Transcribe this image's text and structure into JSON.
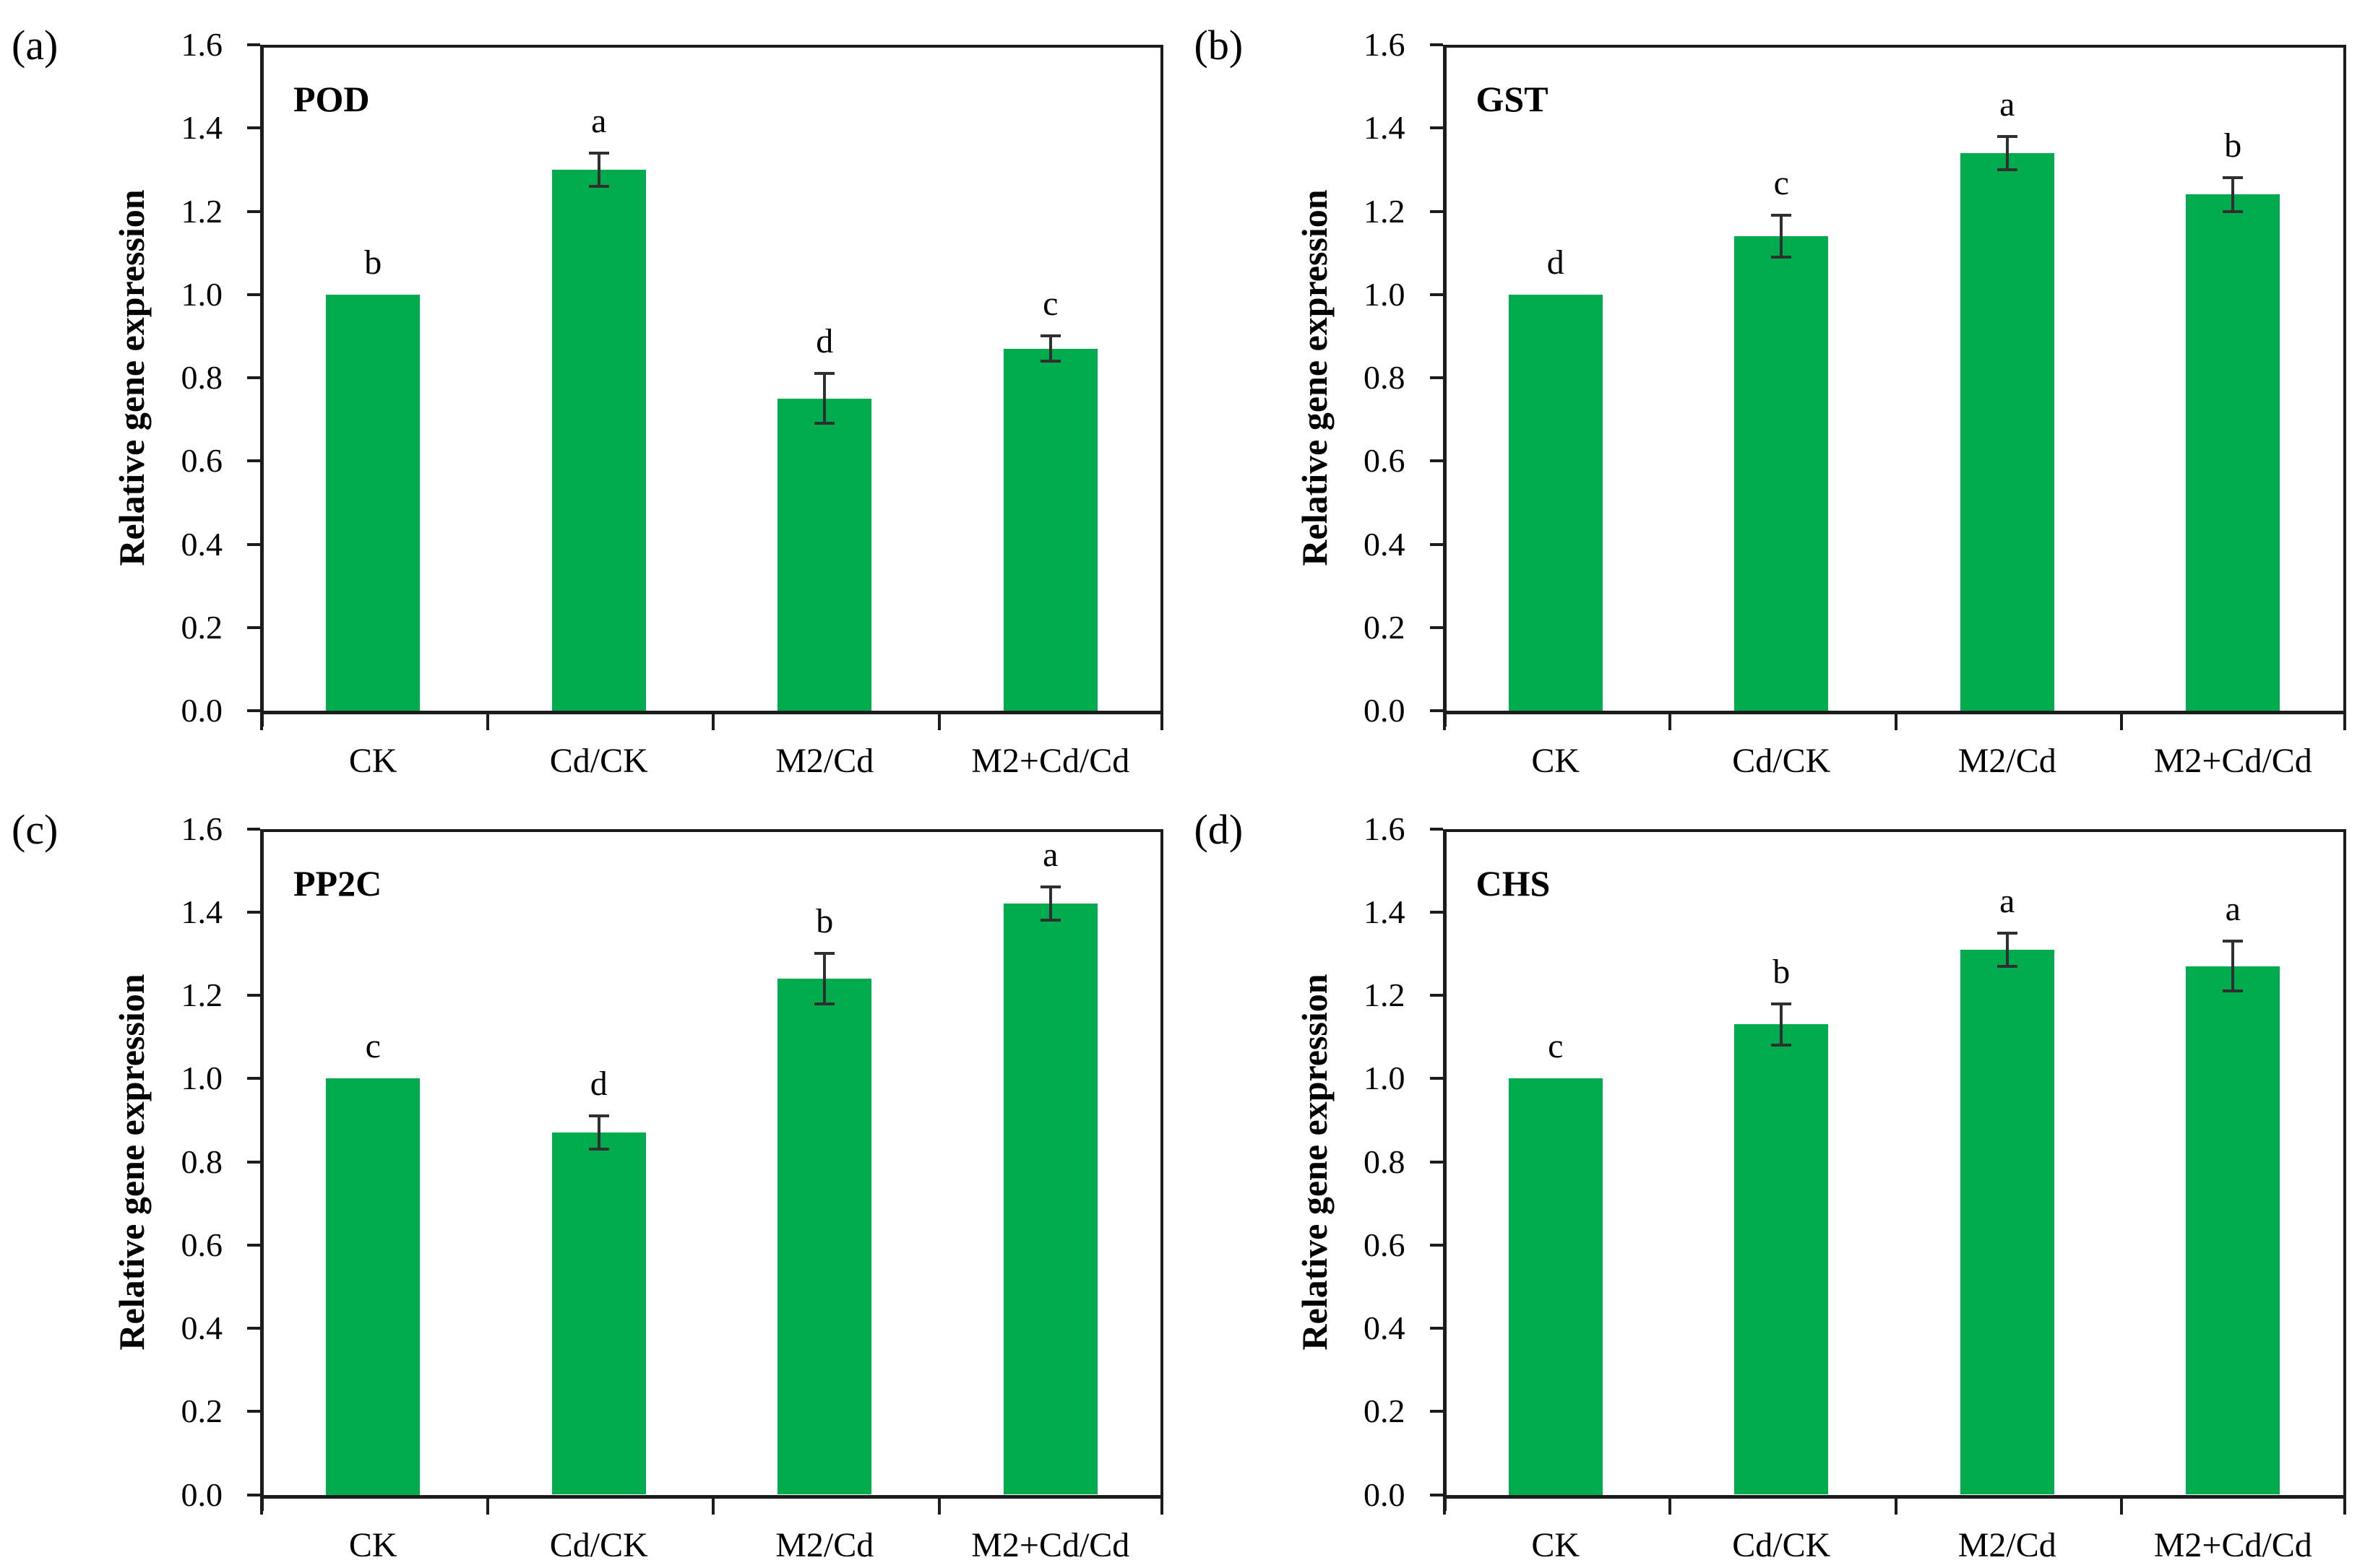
{
  "figure": {
    "bar_color": "#00AC4E",
    "axis_color": "#1c1c1c",
    "error_bar_color": "#2f2f2f",
    "background": "#ffffff",
    "ylabel": "Relative gene expression",
    "categories": [
      "CK",
      "Cd/CK",
      "M2/Cd",
      "M2+Cd/Cd"
    ],
    "yticks": [
      "0.0",
      "0.2",
      "0.4",
      "0.6",
      "0.8",
      "1.0",
      "1.2",
      "1.4",
      "1.6"
    ]
  },
  "chart_data": [
    {
      "type": "bar",
      "panel_label": "(a)",
      "title": "POD",
      "xlabel": "",
      "ylabel": "Relative gene expression",
      "categories": [
        "CK",
        "Cd/CK",
        "M2/Cd",
        "M2+Cd/Cd"
      ],
      "values": [
        1.0,
        1.3,
        0.75,
        0.87
      ],
      "errors": [
        0,
        0.04,
        0.06,
        0.03
      ],
      "sig_letters": [
        "b",
        "a",
        "d",
        "c"
      ],
      "yticks": [
        "0.0",
        "0.2",
        "0.4",
        "0.6",
        "0.8",
        "1.0",
        "1.2",
        "1.4",
        "1.6"
      ],
      "ylim": [
        0,
        1.6
      ],
      "grid": false,
      "legend": false
    },
    {
      "type": "bar",
      "panel_label": "(b)",
      "title": "GST",
      "xlabel": "",
      "ylabel": "Relative gene expression",
      "categories": [
        "CK",
        "Cd/CK",
        "M2/Cd",
        "M2+Cd/Cd"
      ],
      "values": [
        1.0,
        1.14,
        1.34,
        1.24
      ],
      "errors": [
        0,
        0.05,
        0.04,
        0.04
      ],
      "sig_letters": [
        "d",
        "c",
        "a",
        "b"
      ],
      "yticks": [
        "0.0",
        "0.2",
        "0.4",
        "0.6",
        "0.8",
        "1.0",
        "1.2",
        "1.4",
        "1.6"
      ],
      "ylim": [
        0,
        1.6
      ],
      "grid": false,
      "legend": false
    },
    {
      "type": "bar",
      "panel_label": "(c)",
      "title": "PP2C",
      "xlabel": "",
      "ylabel": "Relative gene expression",
      "categories": [
        "CK",
        "Cd/CK",
        "M2/Cd",
        "M2+Cd/Cd"
      ],
      "values": [
        1.0,
        0.87,
        1.24,
        1.42
      ],
      "errors": [
        0,
        0.04,
        0.06,
        0.04
      ],
      "sig_letters": [
        "c",
        "d",
        "b",
        "a"
      ],
      "yticks": [
        "0.0",
        "0.2",
        "0.4",
        "0.6",
        "0.8",
        "1.0",
        "1.2",
        "1.4",
        "1.6"
      ],
      "ylim": [
        0,
        1.6
      ],
      "grid": false,
      "legend": false
    },
    {
      "type": "bar",
      "panel_label": "(d)",
      "title": "CHS",
      "xlabel": "",
      "ylabel": "Relative gene expression",
      "categories": [
        "CK",
        "Cd/CK",
        "M2/Cd",
        "M2+Cd/Cd"
      ],
      "values": [
        1.0,
        1.13,
        1.31,
        1.27
      ],
      "errors": [
        0,
        0.05,
        0.04,
        0.06
      ],
      "sig_letters": [
        "c",
        "b",
        "a",
        "a"
      ],
      "yticks": [
        "0.0",
        "0.2",
        "0.4",
        "0.6",
        "0.8",
        "1.0",
        "1.2",
        "1.4",
        "1.6"
      ],
      "ylim": [
        0,
        1.6
      ],
      "grid": false,
      "legend": false
    }
  ]
}
